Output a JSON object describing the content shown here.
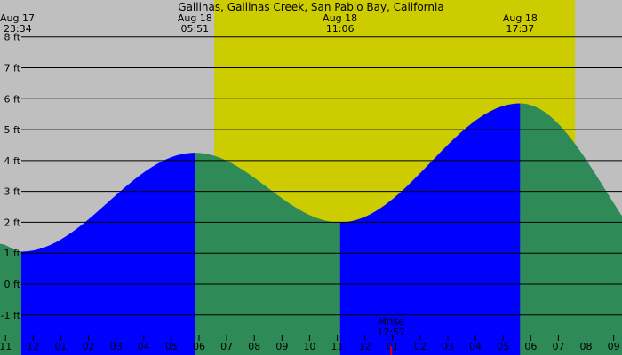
{
  "chart_data": {
    "type": "area",
    "title": "Gallinas, Gallinas Creek, San Pablo Bay, California",
    "y_unit_suffix": " ft",
    "y_ticks": [
      8,
      7,
      6,
      5,
      4,
      3,
      2,
      1,
      0,
      -1
    ],
    "ylim": [
      -2.3,
      9.2
    ],
    "x_range_hours": [
      -1.2,
      21.3
    ],
    "daylight": {
      "start": 6.55,
      "end": 19.6,
      "color": "#cccc00"
    },
    "hour_labels": [
      {
        "h": -1,
        "label": "11"
      },
      {
        "h": 0,
        "label": "12"
      },
      {
        "h": 1,
        "label": "01"
      },
      {
        "h": 2,
        "label": "02"
      },
      {
        "h": 3,
        "label": "03"
      },
      {
        "h": 4,
        "label": "04"
      },
      {
        "h": 5,
        "label": "05"
      },
      {
        "h": 6,
        "label": "06"
      },
      {
        "h": 7,
        "label": "07"
      },
      {
        "h": 8,
        "label": "08"
      },
      {
        "h": 9,
        "label": "09"
      },
      {
        "h": 10,
        "label": "10"
      },
      {
        "h": 11,
        "label": "11"
      },
      {
        "h": 12,
        "label": "12"
      },
      {
        "h": 13,
        "label": "01"
      },
      {
        "h": 14,
        "label": "02"
      },
      {
        "h": 15,
        "label": "03"
      },
      {
        "h": 16,
        "label": "04"
      },
      {
        "h": 17,
        "label": "05"
      },
      {
        "h": 18,
        "label": "06"
      },
      {
        "h": 19,
        "label": "07"
      },
      {
        "h": 20,
        "label": "08"
      },
      {
        "h": 21,
        "label": "09"
      }
    ],
    "tide_events": [
      {
        "date": "Aug 17",
        "time": "23:34",
        "h": -0.4333,
        "height": 1.05,
        "type": "low"
      },
      {
        "date": "Aug 18",
        "time": "05:51",
        "h": 5.85,
        "height": 4.25,
        "type": "high"
      },
      {
        "date": "Aug 18",
        "time": "11:06",
        "h": 11.1,
        "height": 2.0,
        "type": "low"
      },
      {
        "date": "Aug 18",
        "time": "17:37",
        "h": 17.6167,
        "height": 5.85,
        "type": "high"
      }
    ],
    "edge_heights": {
      "start_h": -1.2,
      "start": 1.3,
      "end_h": 21.3,
      "end": 2.8
    },
    "moonset": {
      "label": "Mrise",
      "time": "12:57",
      "h": 12.95
    },
    "rising_color": "#0000ff",
    "falling_color": "#2e8b57"
  }
}
